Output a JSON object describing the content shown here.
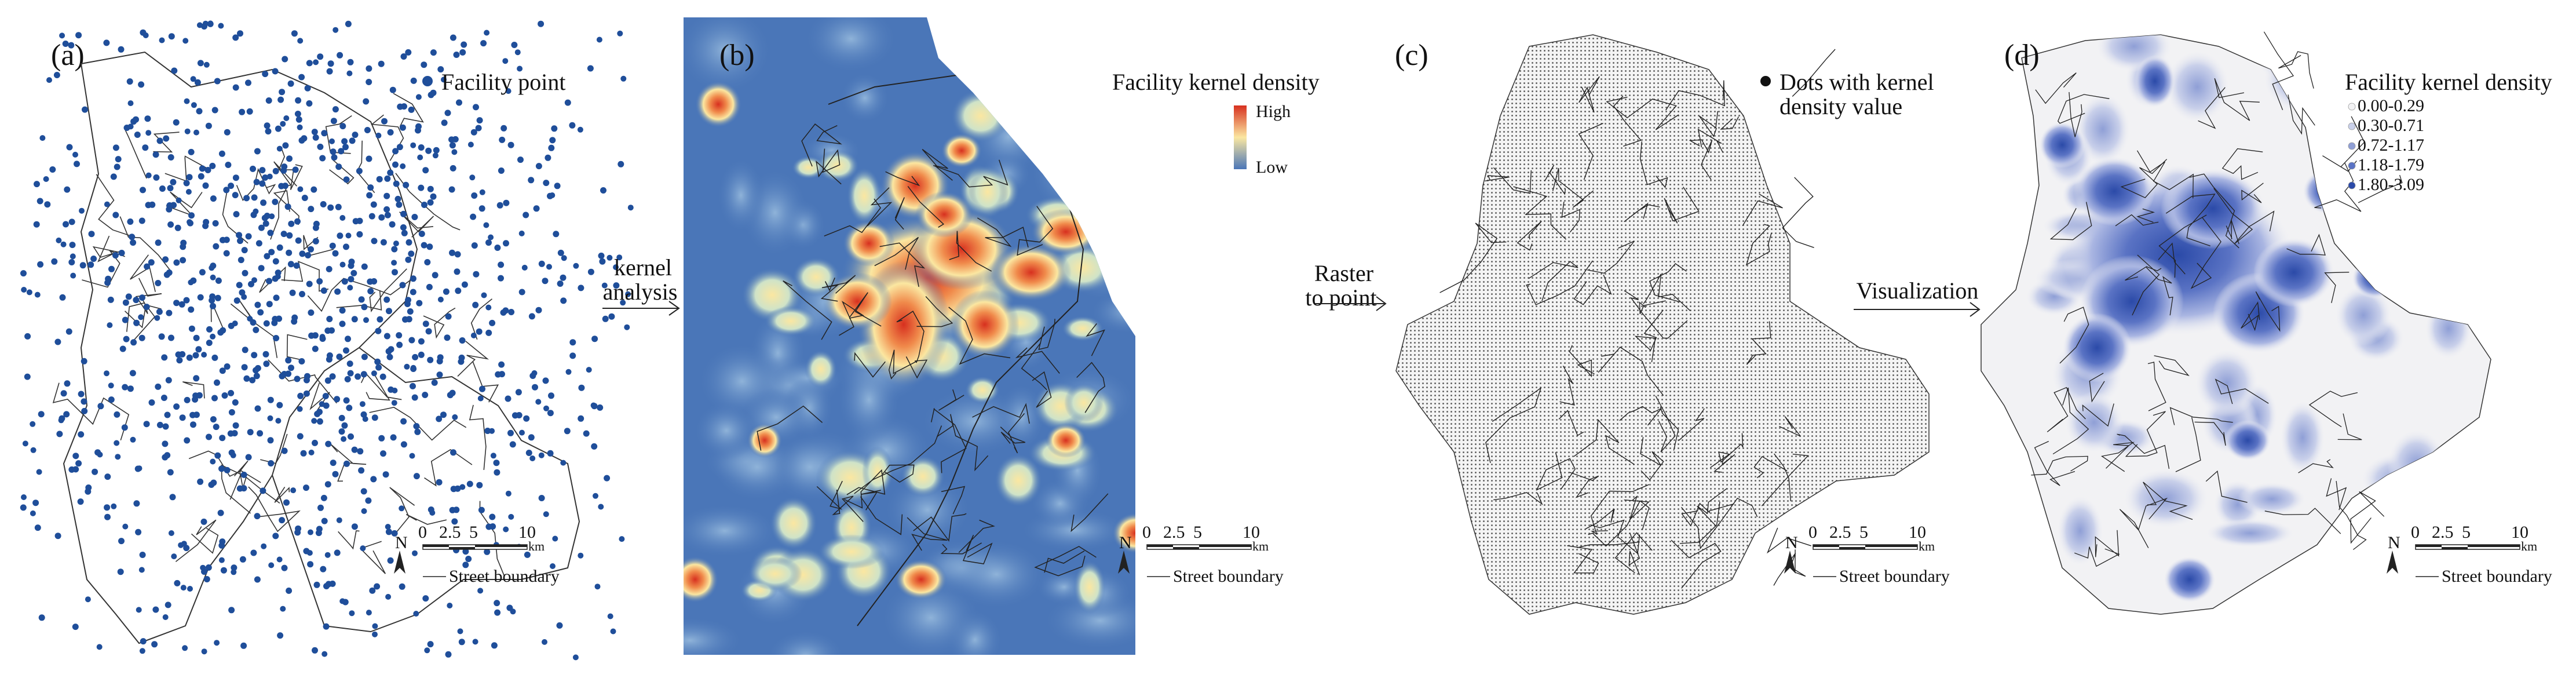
{
  "panels": {
    "a": {
      "label": "(a)",
      "legend": "Facility point"
    },
    "b": {
      "label": "(b)",
      "legend": "Facility kernel density",
      "high": "High",
      "low": "Low"
    },
    "c": {
      "label": "(c)",
      "legend_line1": "Dots with kernel",
      "legend_line2": "density value"
    },
    "d": {
      "label": "(d)",
      "legend": "Facility kernel density",
      "classes": [
        "0.00-0.29",
        "0.30-0.71",
        "0.72-1.17",
        "1.18-1.79",
        "1.80-3.09"
      ]
    }
  },
  "arrows": {
    "kernel": {
      "line1": "kernel",
      "line2": "analysis"
    },
    "raster": {
      "line1": "Raster",
      "line2": "to point"
    },
    "visual": {
      "line1": "Visualization"
    }
  },
  "scalebar": {
    "ticks": [
      "0",
      "2.5",
      "5",
      "10"
    ],
    "unit": "km",
    "north": "N",
    "boundary": "Street boundary"
  },
  "colors": {
    "point": "#1f4e9a",
    "density_low": "#4a76b8",
    "density_high": "#d7301f",
    "class_colors": [
      "#f2f2f4",
      "#c9d0ea",
      "#8f9fd6",
      "#5a73c4",
      "#2b4aa8"
    ]
  }
}
